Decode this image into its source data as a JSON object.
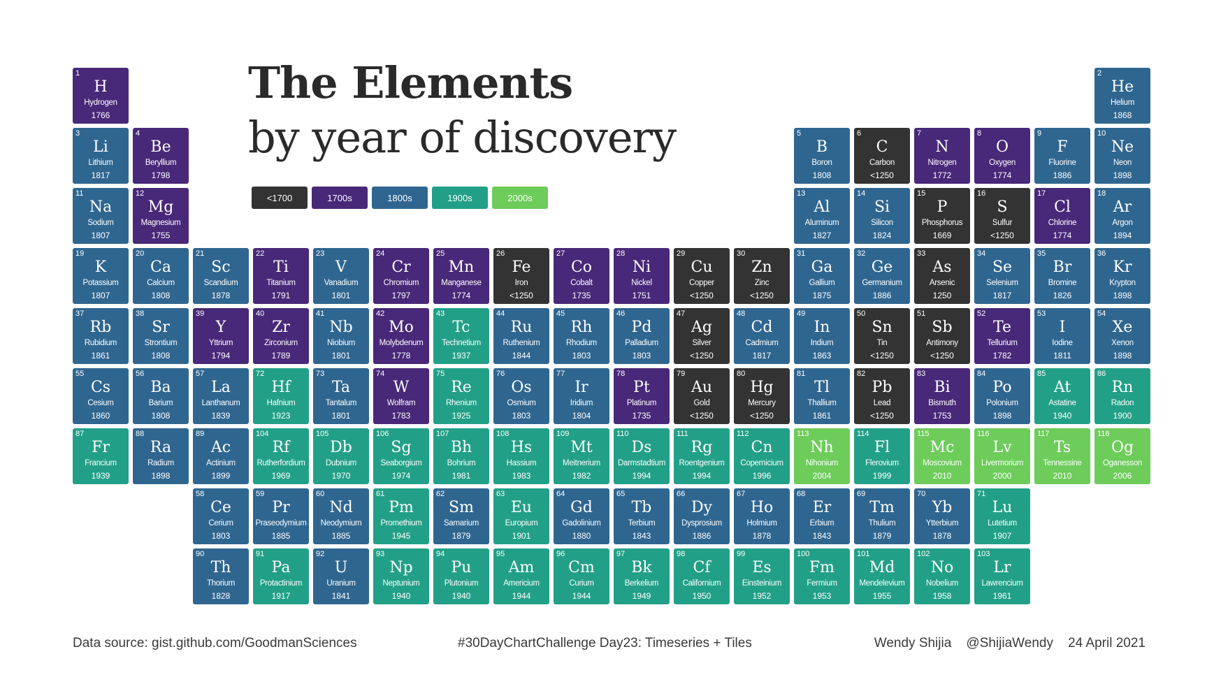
{
  "title": "The Elements",
  "subtitle": "by year of discovery",
  "colors": {
    "<1700": "#333333",
    "1700s": "#482878",
    "1800s": "#2f6690",
    "1900s": "#22a087",
    "2000s": "#6dcc5a"
  },
  "legend": [
    {
      "label": "<1700",
      "key": "<1700"
    },
    {
      "label": "1700s",
      "key": "1700s"
    },
    {
      "label": "1800s",
      "key": "1800s"
    },
    {
      "label": "1900s",
      "key": "1900s"
    },
    {
      "label": "2000s",
      "key": "2000s"
    }
  ],
  "footer": {
    "source": "Data source: gist.github.com/GoodmanSciences",
    "challenge": "#30DayChartChallenge Day23: Timeseries + Tiles",
    "credit": "Wendy Shijia    @ShijiaWendy    24 April 2021"
  },
  "chart_data": {
    "type": "heatmap",
    "fields": [
      "number",
      "symbol",
      "name",
      "year",
      "period",
      "group"
    ],
    "elements": [
      [
        1,
        "H",
        "Hydrogen",
        "1766",
        1,
        1
      ],
      [
        2,
        "He",
        "Helium",
        "1868",
        1,
        18
      ],
      [
        3,
        "Li",
        "Lithium",
        "1817",
        2,
        1
      ],
      [
        4,
        "Be",
        "Beryllium",
        "1798",
        2,
        2
      ],
      [
        5,
        "B",
        "Boron",
        "1808",
        2,
        13
      ],
      [
        6,
        "C",
        "Carbon",
        "<1250",
        2,
        14
      ],
      [
        7,
        "N",
        "Nitrogen",
        "1772",
        2,
        15
      ],
      [
        8,
        "O",
        "Oxygen",
        "1774",
        2,
        16
      ],
      [
        9,
        "F",
        "Fluorine",
        "1886",
        2,
        17
      ],
      [
        10,
        "Ne",
        "Neon",
        "1898",
        2,
        18
      ],
      [
        11,
        "Na",
        "Sodium",
        "1807",
        3,
        1
      ],
      [
        12,
        "Mg",
        "Magnesium",
        "1755",
        3,
        2
      ],
      [
        13,
        "Al",
        "Aluminum",
        "1827",
        3,
        13
      ],
      [
        14,
        "Si",
        "Silicon",
        "1824",
        3,
        14
      ],
      [
        15,
        "P",
        "Phosphorus",
        "1669",
        3,
        15
      ],
      [
        16,
        "S",
        "Sulfur",
        "<1250",
        3,
        16
      ],
      [
        17,
        "Cl",
        "Chlorine",
        "1774",
        3,
        17
      ],
      [
        18,
        "Ar",
        "Argon",
        "1894",
        3,
        18
      ],
      [
        19,
        "K",
        "Potassium",
        "1807",
        4,
        1
      ],
      [
        20,
        "Ca",
        "Calcium",
        "1808",
        4,
        2
      ],
      [
        21,
        "Sc",
        "Scandium",
        "1878",
        4,
        3
      ],
      [
        22,
        "Ti",
        "Titanium",
        "1791",
        4,
        4
      ],
      [
        23,
        "V",
        "Vanadium",
        "1801",
        4,
        5
      ],
      [
        24,
        "Cr",
        "Chromium",
        "1797",
        4,
        6
      ],
      [
        25,
        "Mn",
        "Manganese",
        "1774",
        4,
        7
      ],
      [
        26,
        "Fe",
        "Iron",
        "<1250",
        4,
        8
      ],
      [
        27,
        "Co",
        "Cobalt",
        "1735",
        4,
        9
      ],
      [
        28,
        "Ni",
        "Nickel",
        "1751",
        4,
        10
      ],
      [
        29,
        "Cu",
        "Copper",
        "<1250",
        4,
        11
      ],
      [
        30,
        "Zn",
        "Zinc",
        "<1250",
        4,
        12
      ],
      [
        31,
        "Ga",
        "Gallium",
        "1875",
        4,
        13
      ],
      [
        32,
        "Ge",
        "Germanium",
        "1886",
        4,
        14
      ],
      [
        33,
        "As",
        "Arsenic",
        "1250",
        4,
        15
      ],
      [
        34,
        "Se",
        "Selenium",
        "1817",
        4,
        16
      ],
      [
        35,
        "Br",
        "Bromine",
        "1826",
        4,
        17
      ],
      [
        36,
        "Kr",
        "Krypton",
        "1898",
        4,
        18
      ],
      [
        37,
        "Rb",
        "Rubidium",
        "1861",
        5,
        1
      ],
      [
        38,
        "Sr",
        "Strontium",
        "1808",
        5,
        2
      ],
      [
        39,
        "Y",
        "Yttrium",
        "1794",
        5,
        3
      ],
      [
        40,
        "Zr",
        "Zirconium",
        "1789",
        5,
        4
      ],
      [
        41,
        "Nb",
        "Niobium",
        "1801",
        5,
        5
      ],
      [
        42,
        "Mo",
        "Molybdenum",
        "1778",
        5,
        6
      ],
      [
        43,
        "Tc",
        "Technetium",
        "1937",
        5,
        7
      ],
      [
        44,
        "Ru",
        "Ruthenium",
        "1844",
        5,
        8
      ],
      [
        45,
        "Rh",
        "Rhodium",
        "1803",
        5,
        9
      ],
      [
        46,
        "Pd",
        "Palladium",
        "1803",
        5,
        10
      ],
      [
        47,
        "Ag",
        "Silver",
        "<1250",
        5,
        11
      ],
      [
        48,
        "Cd",
        "Cadmium",
        "1817",
        5,
        12
      ],
      [
        49,
        "In",
        "Indium",
        "1863",
        5,
        13
      ],
      [
        50,
        "Sn",
        "Tin",
        "<1250",
        5,
        14
      ],
      [
        51,
        "Sb",
        "Antimony",
        "<1250",
        5,
        15
      ],
      [
        52,
        "Te",
        "Tellurium",
        "1782",
        5,
        16
      ],
      [
        53,
        "I",
        "Iodine",
        "1811",
        5,
        17
      ],
      [
        54,
        "Xe",
        "Xenon",
        "1898",
        5,
        18
      ],
      [
        55,
        "Cs",
        "Cesium",
        "1860",
        6,
        1
      ],
      [
        56,
        "Ba",
        "Barium",
        "1808",
        6,
        2
      ],
      [
        57,
        "La",
        "Lanthanum",
        "1839",
        6,
        3
      ],
      [
        72,
        "Hf",
        "Hafnium",
        "1923",
        6,
        4
      ],
      [
        73,
        "Ta",
        "Tantalum",
        "1801",
        6,
        5
      ],
      [
        74,
        "W",
        "Wolfram",
        "1783",
        6,
        6
      ],
      [
        75,
        "Re",
        "Rhenium",
        "1925",
        6,
        7
      ],
      [
        76,
        "Os",
        "Osmium",
        "1803",
        6,
        8
      ],
      [
        77,
        "Ir",
        "Iridium",
        "1804",
        6,
        9
      ],
      [
        78,
        "Pt",
        "Platinum",
        "1735",
        6,
        10
      ],
      [
        79,
        "Au",
        "Gold",
        "<1250",
        6,
        11
      ],
      [
        80,
        "Hg",
        "Mercury",
        "<1250",
        6,
        12
      ],
      [
        81,
        "Tl",
        "Thallium",
        "1861",
        6,
        13
      ],
      [
        82,
        "Pb",
        "Lead",
        "<1250",
        6,
        14
      ],
      [
        83,
        "Bi",
        "Bismuth",
        "1753",
        6,
        15
      ],
      [
        84,
        "Po",
        "Polonium",
        "1898",
        6,
        16
      ],
      [
        85,
        "At",
        "Astatine",
        "1940",
        6,
        17
      ],
      [
        86,
        "Rn",
        "Radon",
        "1900",
        6,
        18
      ],
      [
        87,
        "Fr",
        "Francium",
        "1939",
        7,
        1
      ],
      [
        88,
        "Ra",
        "Radium",
        "1898",
        7,
        2
      ],
      [
        89,
        "Ac",
        "Actinium",
        "1899",
        7,
        3
      ],
      [
        104,
        "Rf",
        "Rutherfordium",
        "1969",
        7,
        4
      ],
      [
        105,
        "Db",
        "Dubnium",
        "1970",
        7,
        5
      ],
      [
        106,
        "Sg",
        "Seaborgium",
        "1974",
        7,
        6
      ],
      [
        107,
        "Bh",
        "Bohrium",
        "1981",
        7,
        7
      ],
      [
        108,
        "Hs",
        "Hassium",
        "1983",
        7,
        8
      ],
      [
        109,
        "Mt",
        "Meitnerium",
        "1982",
        7,
        9
      ],
      [
        110,
        "Ds",
        "Darmstadtium",
        "1994",
        7,
        10
      ],
      [
        111,
        "Rg",
        "Roentgenium",
        "1994",
        7,
        11
      ],
      [
        112,
        "Cn",
        "Copernicium",
        "1996",
        7,
        12
      ],
      [
        113,
        "Nh",
        "Nihonium",
        "2004",
        7,
        13
      ],
      [
        114,
        "Fl",
        "Flerovium",
        "1999",
        7,
        14
      ],
      [
        115,
        "Mc",
        "Moscovium",
        "2010",
        7,
        15
      ],
      [
        116,
        "Lv",
        "Livermorium",
        "2000",
        7,
        16
      ],
      [
        117,
        "Ts",
        "Tennessine",
        "2010",
        7,
        17
      ],
      [
        118,
        "Og",
        "Oganesson",
        "2006",
        7,
        18
      ],
      [
        58,
        "Ce",
        "Cerium",
        "1803",
        8,
        3
      ],
      [
        59,
        "Pr",
        "Praseodymium",
        "1885",
        8,
        4
      ],
      [
        60,
        "Nd",
        "Neodymium",
        "1885",
        8,
        5
      ],
      [
        61,
        "Pm",
        "Promethium",
        "1945",
        8,
        6
      ],
      [
        62,
        "Sm",
        "Samarium",
        "1879",
        8,
        7
      ],
      [
        63,
        "Eu",
        "Europium",
        "1901",
        8,
        8
      ],
      [
        64,
        "Gd",
        "Gadolinium",
        "1880",
        8,
        9
      ],
      [
        65,
        "Tb",
        "Terbium",
        "1843",
        8,
        10
      ],
      [
        66,
        "Dy",
        "Dysprosium",
        "1886",
        8,
        11
      ],
      [
        67,
        "Ho",
        "Holmium",
        "1878",
        8,
        12
      ],
      [
        68,
        "Er",
        "Erbium",
        "1843",
        8,
        13
      ],
      [
        69,
        "Tm",
        "Thulium",
        "1879",
        8,
        14
      ],
      [
        70,
        "Yb",
        "Ytterbium",
        "1878",
        8,
        15
      ],
      [
        71,
        "Lu",
        "Lutetium",
        "1907",
        8,
        16
      ],
      [
        90,
        "Th",
        "Thorium",
        "1828",
        9,
        3
      ],
      [
        91,
        "Pa",
        "Protactinium",
        "1917",
        9,
        4
      ],
      [
        92,
        "U",
        "Uranium",
        "1841",
        9,
        5
      ],
      [
        93,
        "Np",
        "Neptunium",
        "1940",
        9,
        6
      ],
      [
        94,
        "Pu",
        "Plutonium",
        "1940",
        9,
        7
      ],
      [
        95,
        "Am",
        "Americium",
        "1944",
        9,
        8
      ],
      [
        96,
        "Cm",
        "Curium",
        "1944",
        9,
        9
      ],
      [
        97,
        "Bk",
        "Berkelium",
        "1949",
        9,
        10
      ],
      [
        98,
        "Cf",
        "Californium",
        "1950",
        9,
        11
      ],
      [
        99,
        "Es",
        "Einsteinium",
        "1952",
        9,
        12
      ],
      [
        100,
        "Fm",
        "Fermium",
        "1953",
        9,
        13
      ],
      [
        101,
        "Md",
        "Mendelevium",
        "1955",
        9,
        14
      ],
      [
        102,
        "No",
        "Nobelium",
        "1958",
        9,
        15
      ],
      [
        103,
        "Lr",
        "Lawrencium",
        "1961",
        9,
        16
      ]
    ]
  }
}
